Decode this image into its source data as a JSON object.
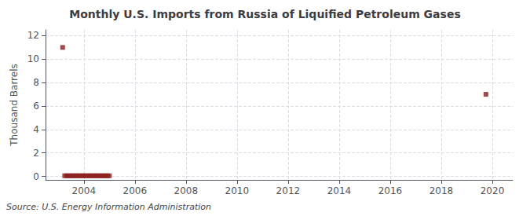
{
  "chart_data": {
    "type": "scatter",
    "title": "Monthly U.S. Imports from Russia of Liquified Petroleum Gases",
    "ylabel": "Thousand Barrels",
    "annotation": "Source: U.S. Energy Information Administration",
    "x": [
      2003.17,
      2003.25,
      2003.33,
      2003.42,
      2003.5,
      2003.58,
      2003.67,
      2003.75,
      2003.83,
      2003.92,
      2004.0,
      2004.08,
      2004.17,
      2004.25,
      2004.33,
      2004.42,
      2004.5,
      2004.58,
      2004.67,
      2004.75,
      2004.83,
      2004.92,
      2005.0,
      2019.75
    ],
    "values": [
      11,
      0.05,
      0.05,
      0.05,
      0.05,
      0.05,
      0.05,
      0.05,
      0.05,
      0.05,
      0.05,
      0.05,
      0.05,
      0.05,
      0.05,
      0.05,
      0.05,
      0.05,
      0.05,
      0.05,
      0.05,
      0.05,
      0.05,
      7
    ],
    "color": "#8b1a1a",
    "marker": "square",
    "xlim": [
      2002.5,
      2020.8
    ],
    "ylim": [
      -0.3,
      12.5
    ],
    "xticks": [
      2004,
      2006,
      2008,
      2010,
      2012,
      2014,
      2016,
      2018,
      2020
    ],
    "yticks": [
      0,
      2,
      4,
      6,
      8,
      10,
      12
    ],
    "grid": true
  }
}
